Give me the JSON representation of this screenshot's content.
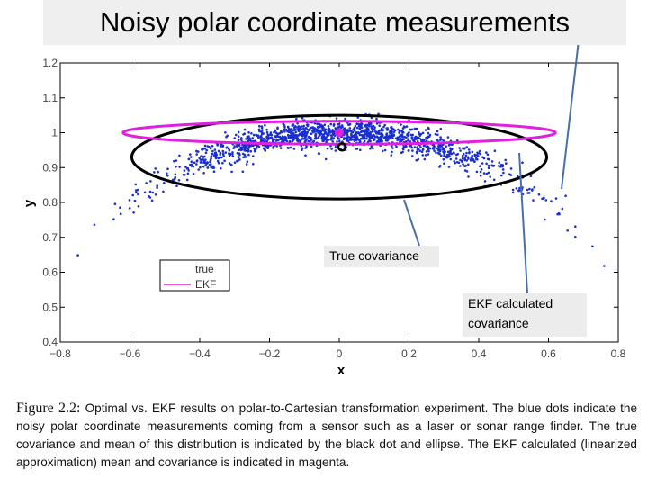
{
  "slide": {
    "title": "Noisy polar coordinate measurements",
    "callout_true": "True covariance",
    "callout_ekf": "EKF calculated\ncovariance"
  },
  "caption": {
    "label": "Figure 2.2:",
    "text": "Optimal vs. EKF results on polar-to-Cartesian transformation experiment. The blue dots indicate the noisy polar coordinate measurements coming from a sensor such as a laser or sonar range finder. The true covariance and mean of this distribution is indicated by the black dot and ellipse. The EKF calculated (linearized approximation) mean and covariance is indicated in magenta."
  },
  "colors": {
    "points": "#1a2fd0",
    "true": "#000000",
    "ekf": "#e020e0",
    "callout_line": "#4a6fa5"
  },
  "chart_data": {
    "type": "scatter",
    "xlabel": "x",
    "ylabel": "y",
    "xlim": [
      -0.8,
      0.8
    ],
    "ylim": [
      0.4,
      1.2
    ],
    "xticks": [
      -0.8,
      -0.6,
      -0.4,
      -0.2,
      0,
      0.2,
      0.4,
      0.6,
      0.8
    ],
    "yticks": [
      0.4,
      0.5,
      0.6,
      0.7,
      0.8,
      0.9,
      1.0,
      1.1,
      1.2
    ],
    "xtick_labels": [
      "−0.8",
      "−0.6",
      "−0.4",
      "−0.2",
      "0",
      "0.2",
      "0.4",
      "0.6",
      "0.8"
    ],
    "ytick_labels": [
      "0.4",
      "0.5",
      "0.6",
      "0.7",
      "0.8",
      "0.9",
      "1",
      "1.1",
      "1.2"
    ],
    "legend": {
      "placement": "lower-left",
      "entries": [
        {
          "name": "true",
          "color": "#000000"
        },
        {
          "name": "EKF",
          "color": "#e020e0"
        }
      ]
    },
    "measurements": {
      "description": "polar samples around range 1, bearing pi/2",
      "range_mean": 1.0,
      "range_std": 0.02,
      "bearing_mean_deg": 90,
      "bearing_std_deg": 15,
      "count": 1500
    },
    "true_mean": {
      "x": 0.0,
      "y": 0.967
    },
    "true_ellipse": {
      "cx": 0.0,
      "cy": 0.93,
      "rx": 0.595,
      "ry": 0.12
    },
    "ekf_mean": {
      "x": 0.0,
      "y": 1.0
    },
    "ekf_ellipse": {
      "cx": 0.0,
      "cy": 1.0,
      "rx": 0.62,
      "ry": 0.033
    }
  }
}
